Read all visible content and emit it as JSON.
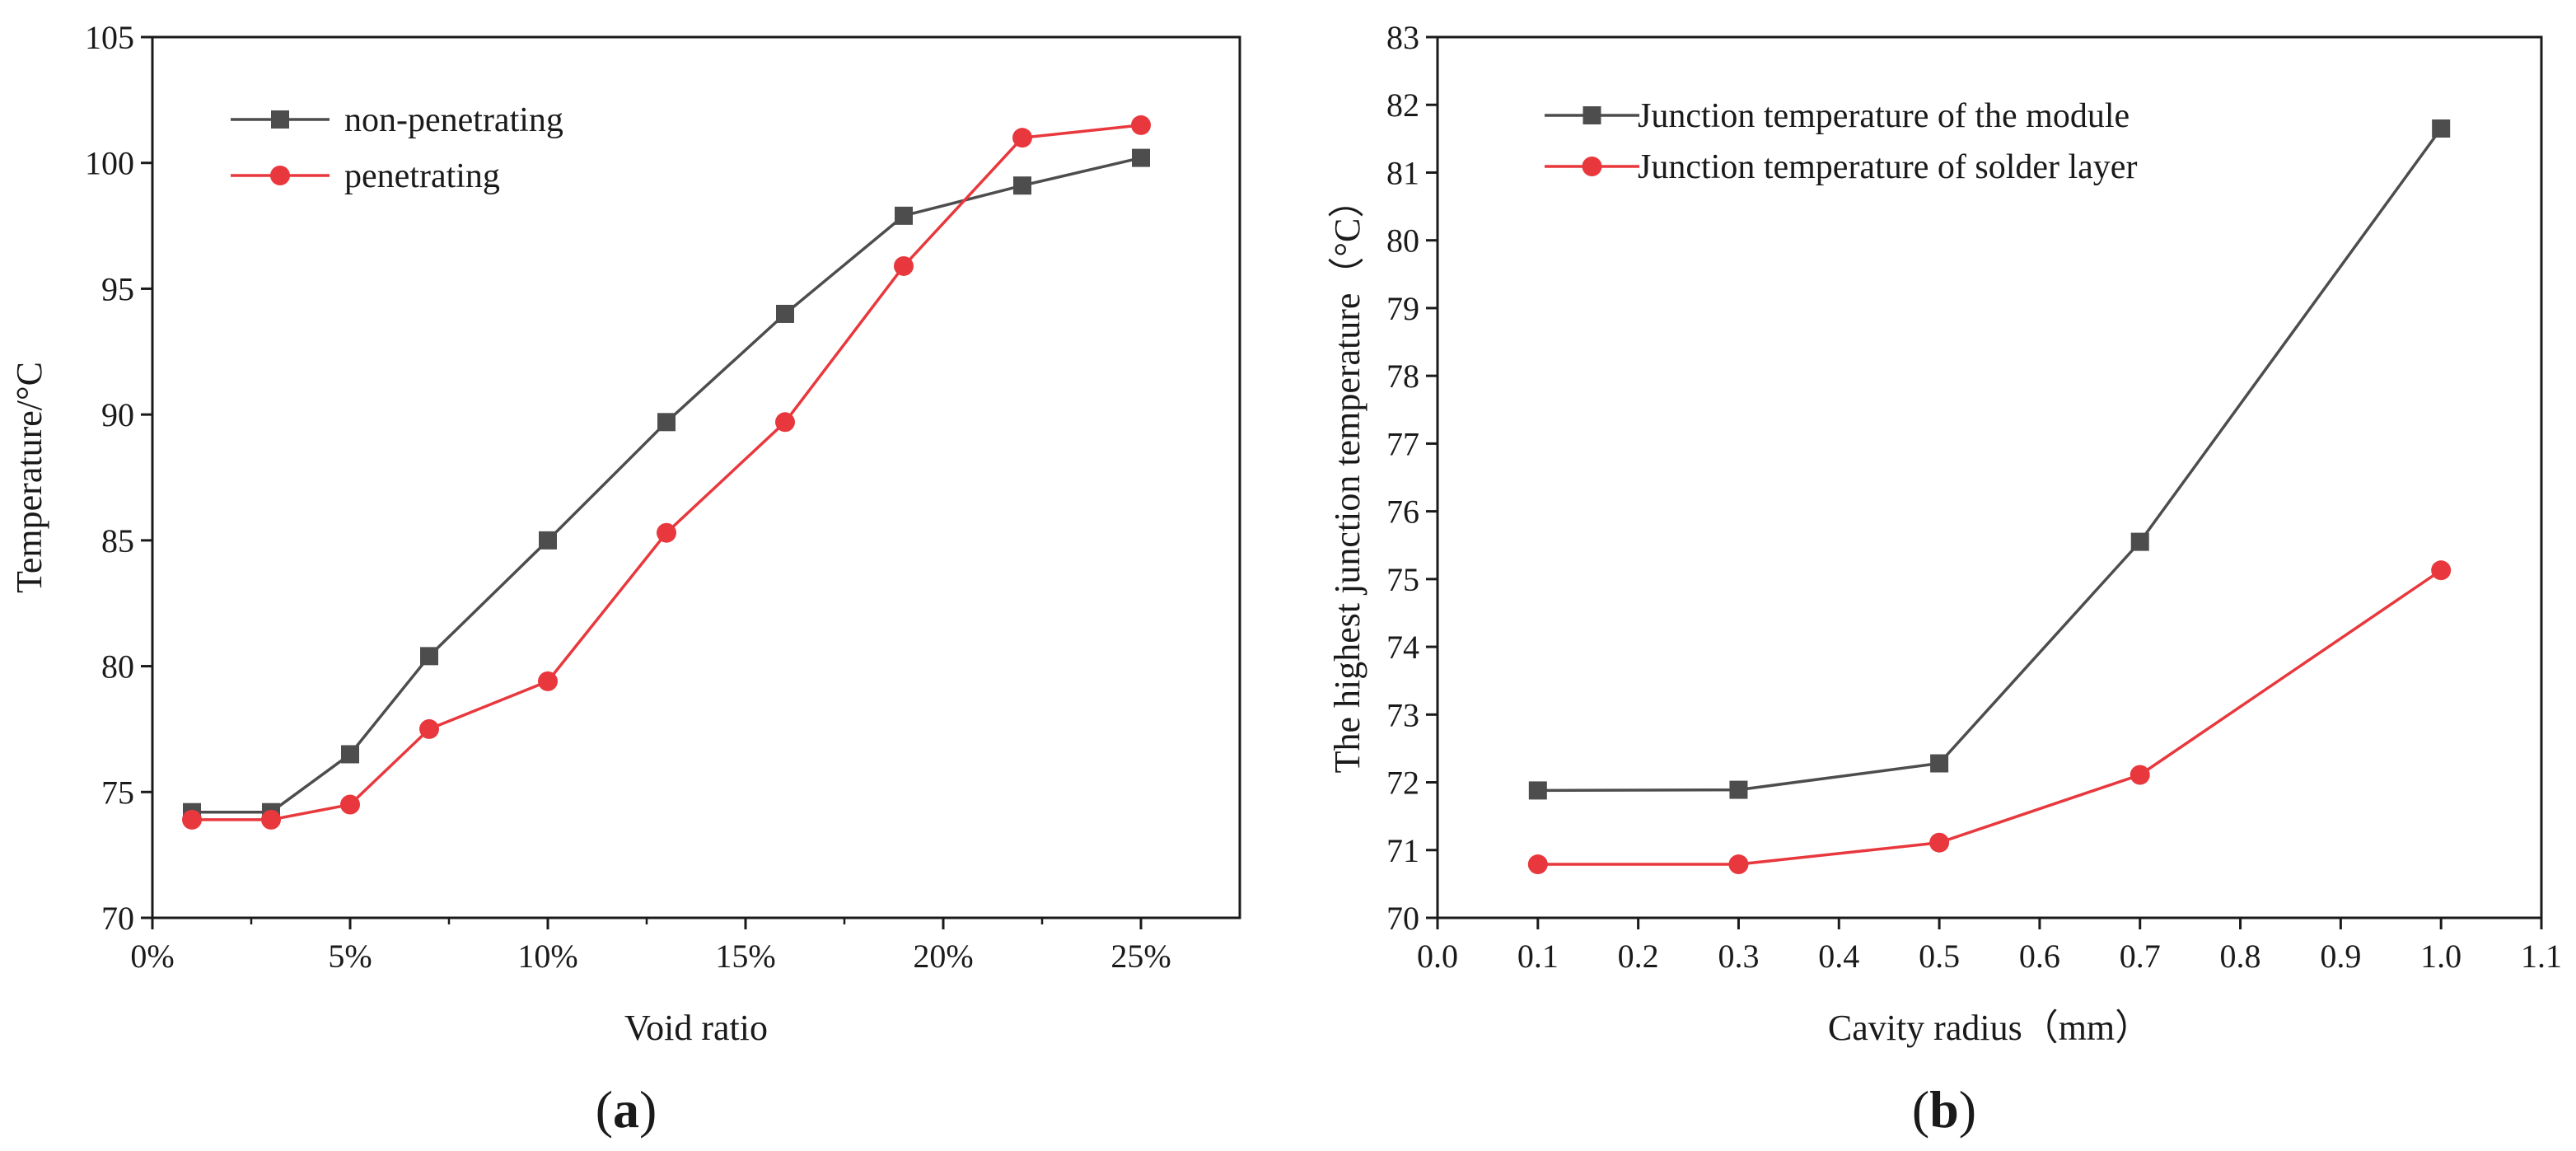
{
  "chart_data": [
    {
      "id": "a",
      "type": "line",
      "panel_label": "a",
      "xlabel": "Void ratio",
      "ylabel": "Temperature/°C",
      "xlim": [
        0,
        27.5
      ],
      "ylim": [
        70,
        105
      ],
      "xticks": [
        0,
        5,
        10,
        15,
        20,
        25
      ],
      "xtick_labels": [
        "0%",
        "5%",
        "10%",
        "15%",
        "20%",
        "25%"
      ],
      "xminor": [
        2.5,
        7.5,
        12.5,
        17.5,
        22.5
      ],
      "yticks": [
        70,
        75,
        80,
        85,
        90,
        95,
        100,
        105
      ],
      "ytick_labels": [
        "70",
        "75",
        "80",
        "85",
        "90",
        "95",
        "100",
        "105"
      ],
      "legend_position": "top-left",
      "grid": false,
      "series": [
        {
          "name": "non-penetrating",
          "marker": "square",
          "color": "#4d4d4d",
          "x": [
            1,
            3,
            5,
            7,
            10,
            13,
            16,
            19,
            22,
            25
          ],
          "y": [
            74.2,
            74.2,
            76.5,
            80.4,
            85.0,
            89.7,
            94.0,
            97.9,
            99.1,
            100.2
          ]
        },
        {
          "name": "penetrating",
          "marker": "circle",
          "color": "#e8383d",
          "x": [
            1,
            3,
            5,
            7,
            10,
            13,
            16,
            19,
            22,
            25
          ],
          "y": [
            73.9,
            73.9,
            74.5,
            77.5,
            79.4,
            85.3,
            89.7,
            95.9,
            101.0,
            101.5
          ]
        }
      ]
    },
    {
      "id": "b",
      "type": "line",
      "panel_label": "b",
      "xlabel": "Cavity radius（mm）",
      "ylabel": "The highest junction temperature（°C）",
      "xlim": [
        0,
        1.1
      ],
      "ylim": [
        70,
        83
      ],
      "xticks": [
        0,
        0.1,
        0.2,
        0.3,
        0.4,
        0.5,
        0.6,
        0.7,
        0.8,
        0.9,
        1.0,
        1.1
      ],
      "xtick_labels": [
        "0.0",
        "0.1",
        "0.2",
        "0.3",
        "0.4",
        "0.5",
        "0.6",
        "0.7",
        "0.8",
        "0.9",
        "1.0",
        "1.1"
      ],
      "xminor": [],
      "yticks": [
        70,
        71,
        72,
        73,
        74,
        75,
        76,
        77,
        78,
        79,
        80,
        81,
        82,
        83
      ],
      "ytick_labels": [
        "70",
        "71",
        "72",
        "73",
        "74",
        "75",
        "76",
        "77",
        "78",
        "79",
        "80",
        "81",
        "82",
        "83"
      ],
      "legend_position": "top-left",
      "grid": false,
      "series": [
        {
          "name": "Junction temperature of the module",
          "marker": "square",
          "color": "#4d4d4d",
          "x": [
            0.1,
            0.3,
            0.5,
            0.7,
            1.0
          ],
          "y": [
            71.88,
            71.89,
            72.28,
            75.55,
            81.65
          ]
        },
        {
          "name": "Junction temperature of solder layer",
          "marker": "circle",
          "color": "#e8383d",
          "x": [
            0.1,
            0.3,
            0.5,
            0.7,
            1.0
          ],
          "y": [
            70.79,
            70.79,
            71.11,
            72.11,
            75.13
          ]
        }
      ]
    }
  ]
}
